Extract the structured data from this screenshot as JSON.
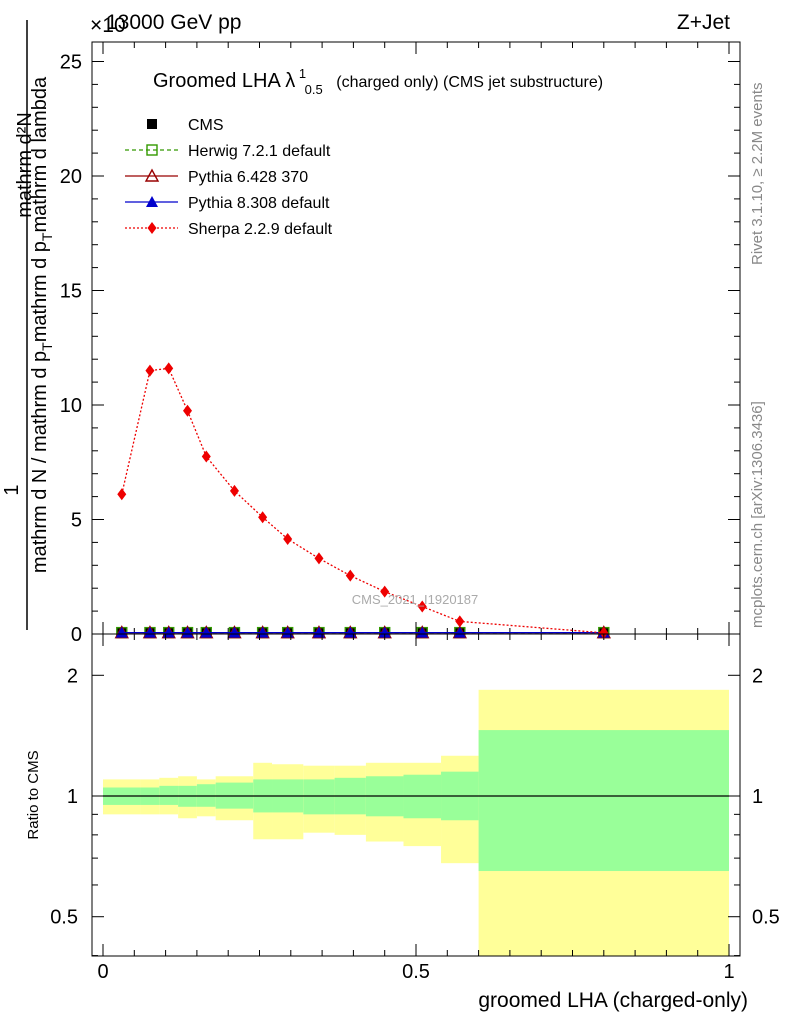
{
  "header": {
    "left": "13000 GeV pp",
    "right": "Z+Jet",
    "exponent": "×10"
  },
  "side_labels": {
    "rivet": "Rivet 3.1.10, ≥ 2.2M events",
    "mcplots": "mcplots.cern.ch [arXiv:1306.3436]"
  },
  "watermark": "CMS_2021_I1920187",
  "chart_data": [
    {
      "type": "line",
      "title": "Groomed LHA",
      "title_symbol": "λ",
      "title_sup": "1",
      "title_sub": "0.5",
      "title_suffix": "(charged only) (CMS jet substructure)",
      "ylabel_numerator": "mathrm d²N",
      "ylabel_frac_top": "1",
      "ylabel_frac_bottom": "mathrm d N / mathrm d p_T mathrm d p_T mathrm d lambda",
      "ylabel_parts": [
        "mathrm d N / mathrm d p",
        "T",
        "mathrm d p",
        "T",
        "mathrm d lambda"
      ],
      "xlim": [
        0,
        1
      ],
      "ylim": [
        0,
        26
      ],
      "yticks": [
        0,
        5,
        10,
        15,
        20,
        25
      ],
      "legend_position": "top-left",
      "legend": [
        {
          "name": "CMS",
          "color": "#000000",
          "marker": "square-filled",
          "line": "none"
        },
        {
          "name": "Herwig 7.2.1 default",
          "color": "#339900",
          "marker": "square-open",
          "line": "dashed"
        },
        {
          "name": "Pythia 6.428 370",
          "color": "#990000",
          "marker": "triangle-open",
          "line": "solid"
        },
        {
          "name": "Pythia 8.308 default",
          "color": "#0000cc",
          "marker": "triangle-filled",
          "line": "solid"
        },
        {
          "name": "Sherpa 2.2.9 default",
          "color": "#ee0000",
          "marker": "diamond-filled",
          "line": "dotted"
        }
      ],
      "bin_edges": [
        0,
        0.06,
        0.09,
        0.12,
        0.15,
        0.18,
        0.24,
        0.27,
        0.32,
        0.37,
        0.42,
        0.48,
        0.54,
        0.6,
        1.0
      ],
      "x": [
        0.03,
        0.075,
        0.105,
        0.135,
        0.165,
        0.21,
        0.255,
        0.295,
        0.345,
        0.395,
        0.45,
        0.51,
        0.57,
        0.8
      ],
      "series": [
        {
          "name": "CMS",
          "values": [
            0.06,
            0.06,
            0.06,
            0.06,
            0.06,
            0.06,
            0.06,
            0.06,
            0.06,
            0.06,
            0.06,
            0.06,
            0.06,
            0.06
          ]
        },
        {
          "name": "Herwig 7.2.1 default",
          "values": [
            0.06,
            0.06,
            0.06,
            0.06,
            0.06,
            0.06,
            0.06,
            0.06,
            0.06,
            0.06,
            0.06,
            0.06,
            0.06,
            0.06
          ]
        },
        {
          "name": "Pythia 6.428 370",
          "values": [
            0.06,
            0.06,
            0.06,
            0.06,
            0.06,
            0.06,
            0.06,
            0.06,
            0.06,
            0.06,
            0.06,
            0.06,
            0.06,
            0.06
          ]
        },
        {
          "name": "Pythia 8.308 default",
          "values": [
            0.06,
            0.06,
            0.06,
            0.06,
            0.06,
            0.06,
            0.06,
            0.06,
            0.06,
            0.06,
            0.06,
            0.06,
            0.06,
            0.06
          ]
        },
        {
          "name": "Sherpa 2.2.9 default",
          "values": [
            6.1,
            11.5,
            11.6,
            9.75,
            7.75,
            6.25,
            5.1,
            4.15,
            3.3,
            2.55,
            1.85,
            1.2,
            0.55,
            0.05
          ]
        }
      ]
    },
    {
      "type": "area",
      "ylabel": "Ratio to CMS",
      "xlabel": "groomed LHA (charged-only)",
      "xlim": [
        0,
        1
      ],
      "ylim": [
        0.35,
        2.3
      ],
      "yticks": [
        0.5,
        1,
        2
      ],
      "ytick_labels": [
        "0.5",
        "1",
        "2"
      ],
      "xticks": [
        0,
        0.5,
        1
      ],
      "xtick_labels": [
        "0",
        "0.5",
        "1"
      ],
      "reference_line": 1,
      "bin_edges": [
        0,
        0.06,
        0.09,
        0.12,
        0.15,
        0.18,
        0.24,
        0.27,
        0.32,
        0.37,
        0.42,
        0.48,
        0.54,
        0.6,
        1.0
      ],
      "inner_band_color": "#99ff99",
      "outer_band_color": "#ffff99",
      "inner_band": {
        "low": [
          0.95,
          0.95,
          0.95,
          0.94,
          0.94,
          0.93,
          0.91,
          0.91,
          0.9,
          0.9,
          0.89,
          0.88,
          0.87,
          0.65
        ],
        "high": [
          1.05,
          1.05,
          1.06,
          1.06,
          1.07,
          1.08,
          1.1,
          1.1,
          1.1,
          1.11,
          1.12,
          1.13,
          1.15,
          1.46
        ]
      },
      "outer_band": {
        "low": [
          0.9,
          0.9,
          0.9,
          0.88,
          0.89,
          0.87,
          0.78,
          0.78,
          0.81,
          0.8,
          0.77,
          0.75,
          0.68,
          0.35
        ],
        "high": [
          1.1,
          1.1,
          1.11,
          1.12,
          1.1,
          1.12,
          1.21,
          1.2,
          1.19,
          1.19,
          1.21,
          1.21,
          1.26,
          1.84
        ]
      }
    }
  ]
}
